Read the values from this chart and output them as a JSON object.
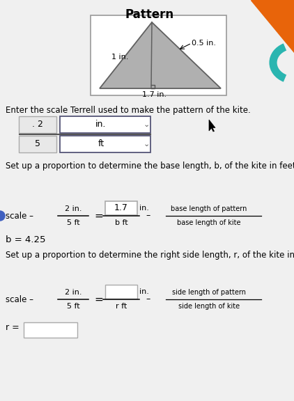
{
  "bg_color": "#e8e8e8",
  "title": "Pattern",
  "kite_label_left": "1 in.",
  "kite_label_right": "0.5 in.",
  "kite_label_bottom": "1.7 in.",
  "prompt1": "Enter the scale Terrell used to make the pattern of the kite.",
  "scale_num": ". 2",
  "scale_unit_num": "in.",
  "scale_den": "5",
  "scale_unit_den": "ft",
  "prompt2": "Set up a proportion to determine the base length, b, of the kite in feet.",
  "box1_value": "1.7",
  "box1_unit": "in.",
  "denom1": "b ft",
  "label_right1_top": "base length of pattern",
  "label_right1_bot": "base length of kite",
  "b_result": "b = 4.25",
  "prompt3": "Set up a proportion to determine the right side length, r, of the kite in feet.",
  "box2_value": "",
  "box2_unit": "in.",
  "denom2": "r ft",
  "label_right2_top": "side length of pattern",
  "label_right2_bot": "side length of kite",
  "r_result": "r =",
  "orange_color": "#e8640a",
  "teal_color": "#2ab5b0",
  "nav_dot_color": "#4060c0"
}
